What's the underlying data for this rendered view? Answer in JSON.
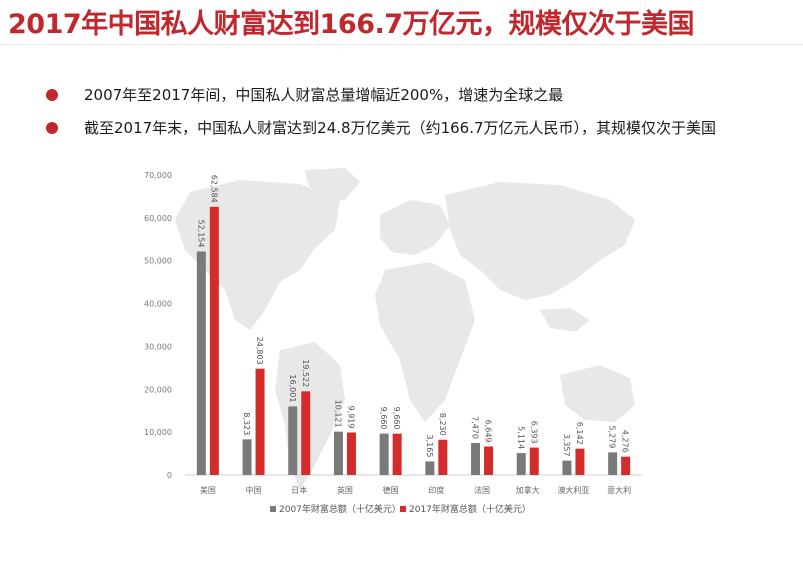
{
  "header": {
    "title": "2017年中国私人财富达到166.7万亿元，规模仅次于美国"
  },
  "bullets": [
    {
      "text": "2007年至2017年间，中国私人财富总量增幅近200%，增速为全球之最"
    },
    {
      "text": "截至2017年末，中国私人财富达到24.8万亿美元（约166.7万亿元人民币），其规模仅次于美国"
    }
  ],
  "colors": {
    "accent": "#c0282e",
    "series_2007": "#7a7a7a",
    "series_2017": "#d42b2b",
    "map": "#e8e8e8"
  },
  "chart_data": {
    "type": "bar",
    "categories": [
      "美国",
      "中国",
      "日本",
      "英国",
      "德国",
      "印度",
      "法国",
      "加拿大",
      "澳大利亚",
      "意大利"
    ],
    "series": [
      {
        "name": "2007年财富总额（十亿美元）",
        "values": [
          52154,
          8323,
          16001,
          10121,
          9660,
          3165,
          7470,
          5114,
          3357,
          5279
        ]
      },
      {
        "name": "2017年财富总额（十亿美元）",
        "values": [
          62584,
          24803,
          19522,
          9919,
          9660,
          8230,
          6649,
          6393,
          6142,
          4276
        ]
      }
    ],
    "value_labels": [
      [
        "52,154",
        "8,323",
        "16,001",
        "10,121",
        "9,660",
        "3,165",
        "7,470",
        "5,114",
        "3,357",
        "5,279"
      ],
      [
        "62,584",
        "24,803",
        "19,522",
        "9,919",
        "9,660",
        "8,230",
        "6,649",
        "6,393",
        "6,142",
        "4,276"
      ]
    ],
    "yticks": [
      "0",
      "10,000",
      "20,000",
      "30,000",
      "40,000",
      "50,000",
      "60,000",
      "70,000"
    ],
    "ylim": [
      0,
      70000
    ],
    "legend_position": "bottom",
    "grid": false
  }
}
